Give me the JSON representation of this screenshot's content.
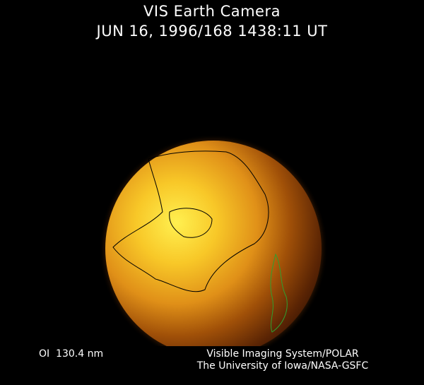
{
  "header": {
    "title": "VIS Earth Camera",
    "timestamp": "JUN 16, 1996/168 1438:11 UT"
  },
  "footer": {
    "wavelength": "OI  130.4 nm",
    "instrument": "Visible Imaging System/POLAR",
    "institution": "The University of Iowa/NASA-GSFC"
  },
  "colors": {
    "background": "#000000",
    "dayglow_bright": "#ffe040",
    "dayglow_mid": "#e08a10",
    "nightside": "#4a1c04",
    "coastline_day": "#000000",
    "coastline_night": "#2fa02f"
  }
}
